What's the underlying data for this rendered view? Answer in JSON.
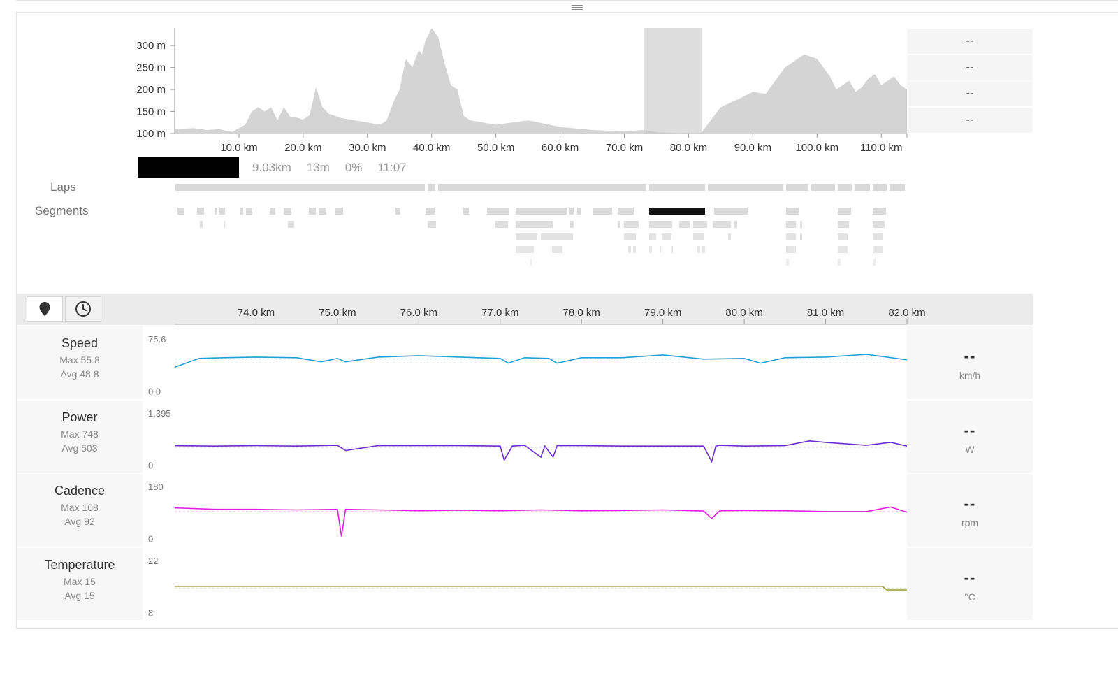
{
  "elevation": {
    "y_ticks": [
      "300 m",
      "250 m",
      "200 m",
      "150 m",
      "100 m"
    ],
    "x_ticks": [
      "10.0 km",
      "20.0 km",
      "30.0 km",
      "40.0 km",
      "50.0 km",
      "60.0 km",
      "70.0 km",
      "80.0 km",
      "90.0 km",
      "100.0 km",
      "110.0 km"
    ],
    "side_values": [
      "--",
      "--",
      "--",
      "--"
    ],
    "selection_range_km": [
      73.0,
      82.0
    ]
  },
  "selection": {
    "distance": "9.03km",
    "duration": "13m",
    "grade": "0%",
    "time": "11:07"
  },
  "rows": {
    "laps_label": "Laps",
    "segments_label": "Segments"
  },
  "zoom_axis": {
    "ticks": [
      "74.0 km",
      "75.0 km",
      "76.0 km",
      "77.0 km",
      "78.0 km",
      "79.0 km",
      "80.0 km",
      "81.0 km",
      "82.0 km"
    ]
  },
  "toolbar": {
    "location_icon": "map-pin-icon",
    "time_icon": "clock-icon"
  },
  "metrics": [
    {
      "name": "Speed",
      "max": "Max 55.8",
      "avg": "Avg 48.8",
      "ymax": "75.6",
      "ymin": "0.0",
      "value": "--",
      "unit": "km/h",
      "color": "#1e9fd8"
    },
    {
      "name": "Power",
      "max": "Max 748",
      "avg": "Avg 503",
      "ymax": "1,395",
      "ymin": "0",
      "value": "--",
      "unit": "W",
      "color": "#6a2bd0"
    },
    {
      "name": "Cadence",
      "max": "Max 108",
      "avg": "Avg 92",
      "ymax": "180",
      "ymin": "0",
      "value": "--",
      "unit": "rpm",
      "color": "#e01ee0"
    },
    {
      "name": "Temperature",
      "max": "Max 15",
      "avg": "Avg 15",
      "ymax": "22",
      "ymin": "8",
      "value": "--",
      "unit": "°C",
      "color": "#9a9a2e"
    }
  ],
  "chart_data": [
    {
      "type": "area",
      "title": "",
      "x_unit": "km",
      "y_unit": "m",
      "xlim": [
        0,
        114
      ],
      "ylim": [
        100,
        340
      ],
      "x": [
        0,
        3,
        5,
        7,
        8,
        9,
        10,
        11,
        12,
        13,
        14,
        15,
        16,
        17,
        18,
        19,
        20,
        21,
        22,
        23,
        24,
        25,
        26,
        28,
        30,
        32,
        33,
        34,
        35,
        36,
        37,
        38,
        38.5,
        39,
        40,
        41,
        42,
        43,
        44,
        45,
        46,
        48,
        50,
        55,
        60,
        65,
        70,
        73,
        75,
        80,
        82,
        85,
        88,
        90,
        92,
        93,
        95,
        98,
        100,
        101,
        102,
        103,
        104,
        105,
        106,
        107,
        108,
        109,
        110,
        111,
        112,
        113,
        114
      ],
      "y": [
        110,
        112,
        108,
        110,
        106,
        104,
        112,
        120,
        150,
        160,
        150,
        160,
        130,
        160,
        138,
        136,
        132,
        142,
        205,
        160,
        145,
        140,
        135,
        130,
        125,
        120,
        130,
        170,
        200,
        270,
        250,
        290,
        280,
        310,
        340,
        320,
        260,
        210,
        200,
        140,
        130,
        125,
        120,
        130,
        115,
        108,
        105,
        108,
        103,
        100,
        102,
        160,
        180,
        195,
        190,
        210,
        250,
        280,
        270,
        250,
        230,
        200,
        210,
        220,
        195,
        205,
        225,
        235,
        210,
        220,
        230,
        210,
        200
      ]
    },
    {
      "type": "line",
      "title": "Speed",
      "x_unit": "km",
      "xlim": [
        73.0,
        82.0
      ],
      "ylim": [
        0.0,
        75.6
      ],
      "x": [
        73.0,
        73.3,
        73.6,
        74.0,
        74.5,
        74.8,
        75.0,
        75.1,
        75.5,
        76.0,
        76.5,
        77.0,
        77.1,
        77.3,
        77.6,
        77.7,
        78.0,
        78.5,
        79.0,
        79.5,
        80.0,
        80.2,
        80.5,
        81.0,
        81.5,
        82.0
      ],
      "y": [
        34,
        47,
        48,
        49,
        48,
        42,
        47,
        42,
        49,
        51,
        49,
        47,
        40,
        48,
        47,
        40,
        48,
        48,
        52,
        46,
        47,
        40,
        48,
        49,
        53,
        45
      ]
    },
    {
      "type": "line",
      "title": "Power",
      "x_unit": "km",
      "xlim": [
        73.0,
        82.0
      ],
      "ylim": [
        0,
        1395
      ],
      "x": [
        73.0,
        73.5,
        74.0,
        74.5,
        75.0,
        75.1,
        75.5,
        76.0,
        76.5,
        77.0,
        77.05,
        77.15,
        77.3,
        77.5,
        77.55,
        77.65,
        77.7,
        78.0,
        78.5,
        79.0,
        79.5,
        79.6,
        79.65,
        79.7,
        80.0,
        80.5,
        80.8,
        81.0,
        81.5,
        81.8,
        82.0
      ],
      "y": [
        510,
        500,
        510,
        500,
        520,
        380,
        510,
        510,
        510,
        500,
        120,
        500,
        520,
        200,
        500,
        200,
        510,
        510,
        500,
        500,
        500,
        80,
        500,
        520,
        500,
        510,
        640,
        600,
        520,
        600,
        500
      ]
    },
    {
      "type": "line",
      "title": "Cadence",
      "x_unit": "km",
      "xlim": [
        73.0,
        82.0
      ],
      "ylim": [
        0,
        180
      ],
      "x": [
        73.0,
        73.5,
        74.0,
        74.5,
        75.0,
        75.05,
        75.1,
        75.5,
        76.0,
        76.5,
        77.0,
        77.5,
        78.0,
        78.5,
        79.0,
        79.5,
        79.6,
        79.7,
        80.0,
        80.5,
        81.0,
        81.5,
        81.8,
        82.0
      ],
      "y": [
        105,
        100,
        100,
        98,
        100,
        5,
        100,
        98,
        95,
        97,
        95,
        98,
        95,
        96,
        98,
        94,
        68,
        95,
        96,
        95,
        92,
        92,
        108,
        90
      ]
    },
    {
      "type": "line",
      "title": "Temperature",
      "x_unit": "km",
      "xlim": [
        73.0,
        82.0
      ],
      "ylim": [
        8,
        22
      ],
      "x": [
        73.0,
        81.7,
        81.75,
        82.0
      ],
      "y": [
        15,
        15,
        14,
        14
      ]
    }
  ]
}
